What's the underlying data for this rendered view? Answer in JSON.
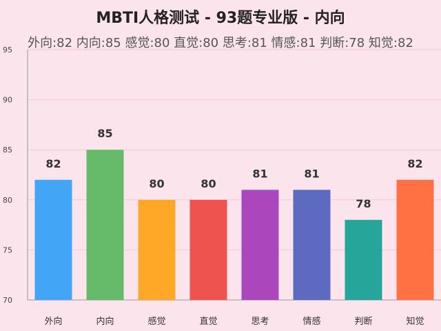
{
  "chart_data": {
    "type": "bar",
    "title": "MBTI人格测试 - 93题专业版 - 内向",
    "subtitle": "外向:82 内向:85 感觉:80 直觉:80 思考:81 情感:81 判断:78 知觉:82",
    "xlabel": "",
    "ylabel": "",
    "categories": [
      "外向",
      "内向",
      "感觉",
      "直觉",
      "思考",
      "情感",
      "判断",
      "知觉"
    ],
    "values": [
      82,
      85,
      80,
      80,
      81,
      81,
      78,
      82
    ],
    "colors": [
      "#42a5f5",
      "#66bb6a",
      "#ffa726",
      "#ef5350",
      "#ab47bc",
      "#5c6bc0",
      "#26a69a",
      "#ff7043"
    ],
    "ylim": [
      70,
      95
    ],
    "yticks": [
      70,
      75,
      80,
      85,
      90,
      95
    ],
    "grid": true,
    "legend": "none"
  }
}
